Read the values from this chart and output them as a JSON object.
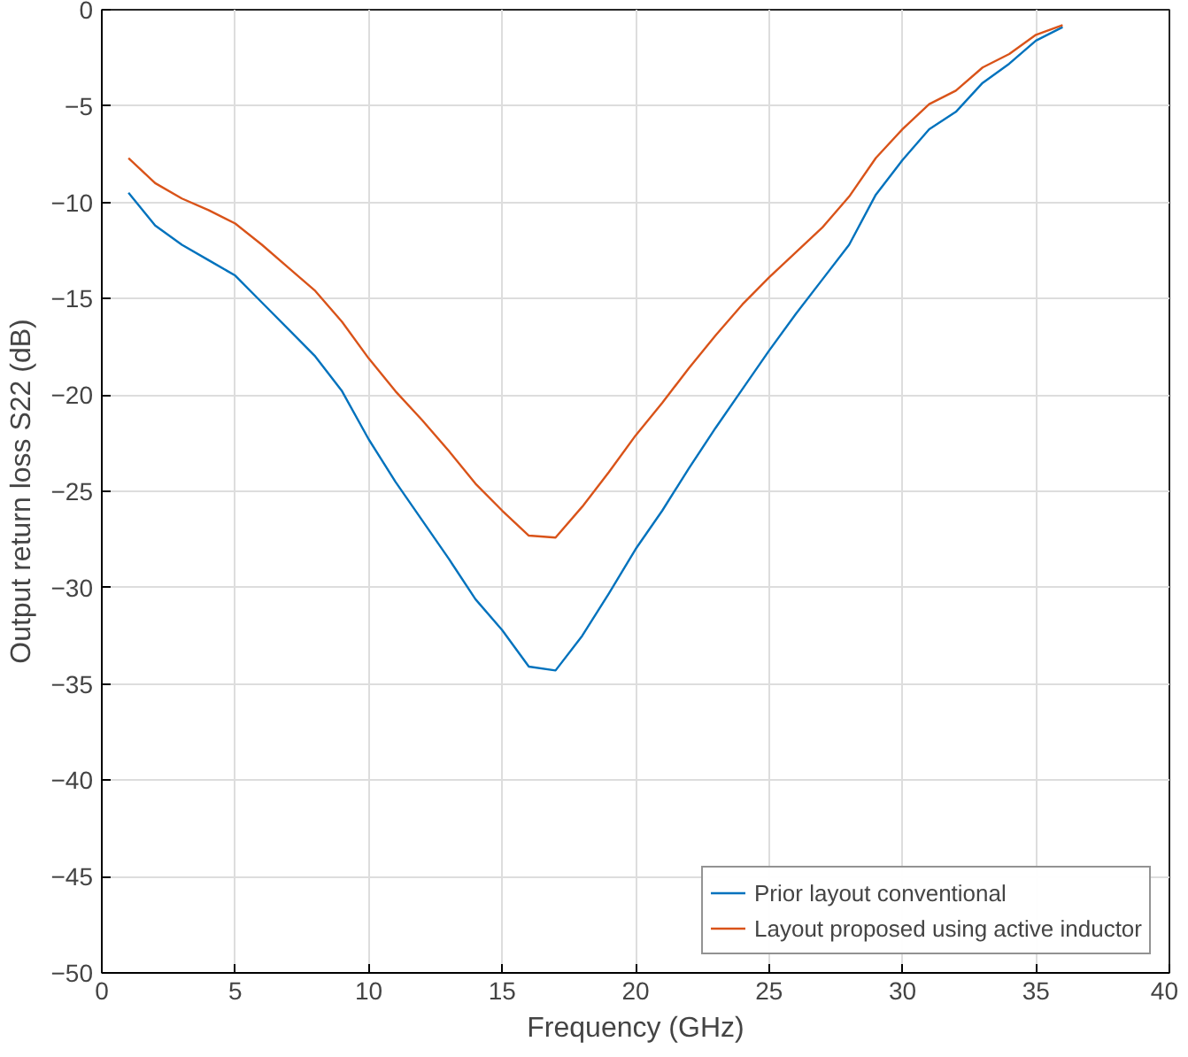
{
  "chart_data": {
    "type": "line",
    "xlabel": "Frequency (GHz)",
    "ylabel": "Output return loss S22 (dB)",
    "x": [
      1,
      2,
      3,
      4,
      5,
      6,
      7,
      8,
      9,
      10,
      11,
      12,
      13,
      14,
      15,
      16,
      17,
      18,
      19,
      20,
      21,
      22,
      23,
      24,
      25,
      26,
      27,
      28,
      29,
      30,
      31,
      32,
      33,
      34,
      35,
      36
    ],
    "series": [
      {
        "name": "Prior layout conventional",
        "color": "#0072bd",
        "values": [
          -9.5,
          -11.2,
          -12.2,
          -13,
          -13.8,
          -15.2,
          -16.6,
          -18,
          -19.8,
          -22.3,
          -24.5,
          -26.5,
          -28.5,
          -30.6,
          -32.2,
          -34.1,
          -34.3,
          -32.5,
          -30.3,
          -28,
          -26,
          -23.8,
          -21.7,
          -19.7,
          -17.7,
          -15.8,
          -14,
          -12.2,
          -9.6,
          -7.8,
          -6.2,
          -5.3,
          -3.8,
          -2.8,
          -1.6,
          -0.9
        ]
      },
      {
        "name": "Layout proposed using active inductor",
        "color": "#d95319",
        "values": [
          -7.7,
          -9,
          -9.8,
          -10.4,
          -11.1,
          -12.2,
          -13.4,
          -14.6,
          -16.2,
          -18.1,
          -19.8,
          -21.3,
          -22.9,
          -24.6,
          -26,
          -27.3,
          -27.4,
          -25.8,
          -24,
          -22.1,
          -20.4,
          -18.6,
          -16.9,
          -15.3,
          -13.9,
          -12.6,
          -11.3,
          -9.7,
          -7.7,
          -6.2,
          -4.9,
          -4.2,
          -3,
          -2.3,
          -1.3,
          -0.8
        ]
      }
    ],
    "xlim": [
      0,
      40
    ],
    "xticks": [
      0,
      5,
      10,
      15,
      20,
      25,
      30,
      35,
      40
    ],
    "ylim": [
      -50,
      0
    ],
    "yticks": [
      -50,
      -45,
      -40,
      -35,
      -30,
      -25,
      -20,
      -15,
      -10,
      -5,
      0
    ],
    "grid": true,
    "legend": "bottom right",
    "marker": "none",
    "line_style": "solid"
  }
}
